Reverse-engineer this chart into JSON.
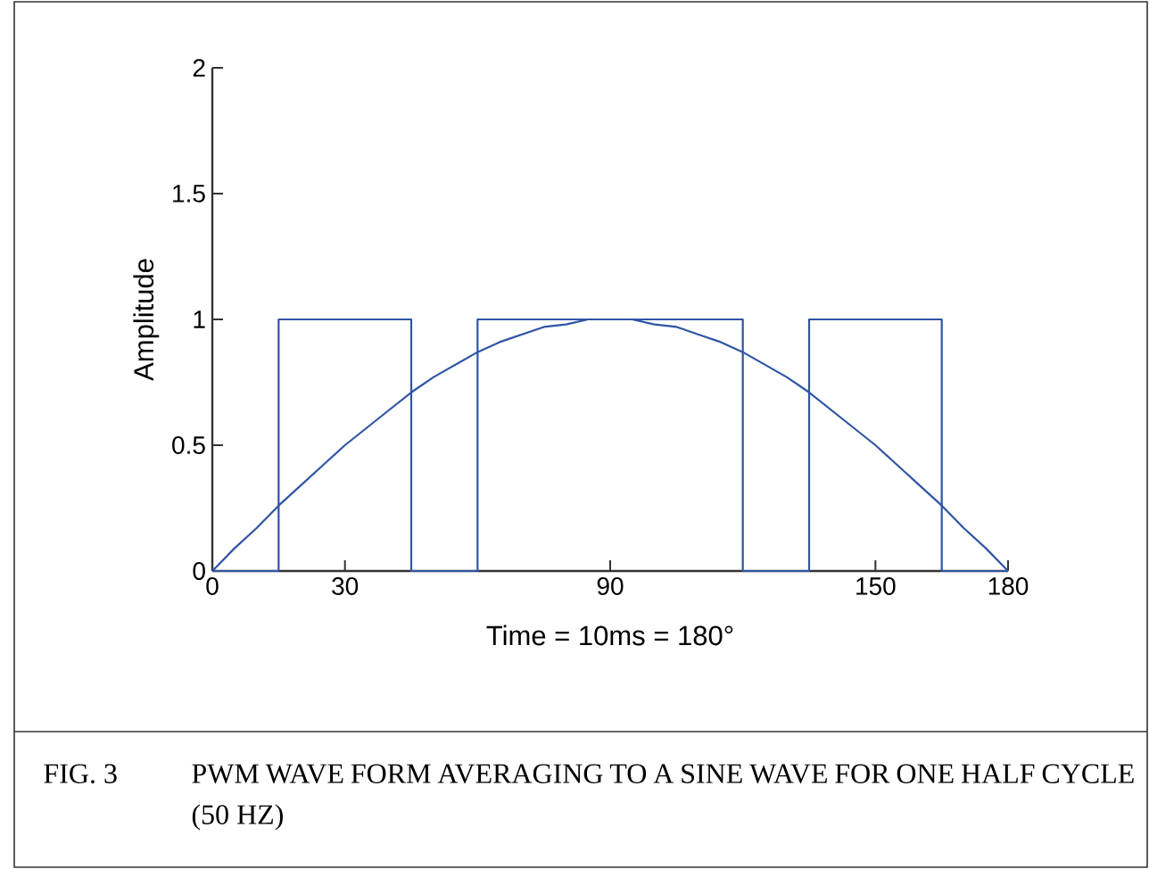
{
  "chart_data": {
    "type": "line",
    "xlabel": "Time = 10ms = 180°",
    "ylabel": "Amplitude",
    "xlim": [
      0,
      180
    ],
    "ylim": [
      0,
      2
    ],
    "xticks": [
      0,
      30,
      90,
      150,
      180
    ],
    "yticks": [
      0,
      0.5,
      1,
      1.5,
      2
    ],
    "series": [
      {
        "color": "#2f55a4",
        "x": [
          0,
          15,
          15,
          45,
          45,
          60,
          60,
          120,
          120,
          135,
          135,
          165,
          165,
          180
        ],
        "values": [
          0,
          0,
          1,
          1,
          0,
          0,
          1,
          1,
          0,
          0,
          1,
          1,
          0,
          0
        ]
      },
      {
        "color": "#2f55a4",
        "x": [
          0,
          5,
          10,
          15,
          20,
          25,
          30,
          35,
          40,
          45,
          50,
          55,
          60,
          65,
          70,
          75,
          80,
          85,
          90,
          95,
          100,
          105,
          110,
          115,
          120,
          125,
          130,
          135,
          140,
          145,
          150,
          155,
          160,
          165,
          170,
          175,
          180
        ],
        "values": [
          0,
          0.09,
          0.17,
          0.26,
          0.34,
          0.42,
          0.5,
          0.57,
          0.64,
          0.71,
          0.77,
          0.82,
          0.87,
          0.91,
          0.94,
          0.97,
          0.98,
          1,
          1,
          1,
          0.98,
          0.97,
          0.94,
          0.91,
          0.87,
          0.82,
          0.77,
          0.71,
          0.64,
          0.57,
          0.5,
          0.42,
          0.34,
          0.26,
          0.17,
          0.09,
          0
        ]
      }
    ],
    "annotations": [
      "FIG. 3",
      "PWM WAVE FORM AVERAGING TO A SINE WAVE FOR ONE HALF CYCLE (50 HZ)"
    ]
  }
}
